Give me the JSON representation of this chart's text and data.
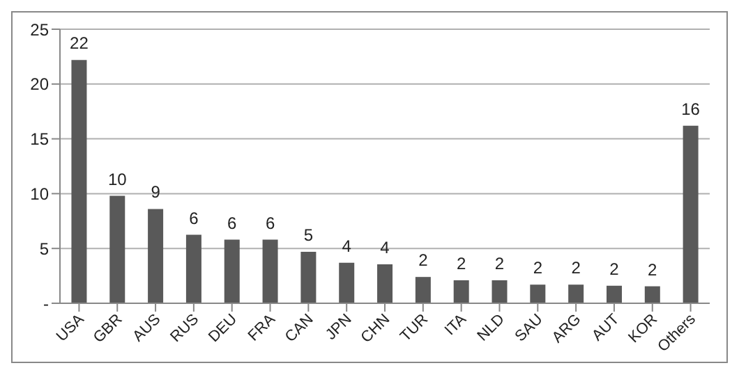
{
  "chart_data": {
    "type": "bar",
    "categories": [
      "USA",
      "GBR",
      "AUS",
      "RUS",
      "DEU",
      "FRA",
      "CAN",
      "JPN",
      "CHN",
      "TUR",
      "ITA",
      "NLD",
      "SAU",
      "ARG",
      "AUT",
      "KOR",
      "Others"
    ],
    "values": [
      22.2,
      9.8,
      8.6,
      6.25,
      5.8,
      5.8,
      4.7,
      3.7,
      3.55,
      2.4,
      2.1,
      2.1,
      1.7,
      1.7,
      1.6,
      1.55,
      16.2
    ],
    "value_labels": [
      "22",
      "10",
      "9",
      "6",
      "6",
      "6",
      "5",
      "4",
      "4",
      "2",
      "2",
      "2",
      "2",
      "2",
      "2",
      "2",
      "16"
    ],
    "color": "#595959",
    "ylim": [
      0,
      25
    ],
    "yticks": [
      {
        "value": 0,
        "label": "-"
      },
      5,
      10,
      15,
      20,
      25
    ],
    "grid": "y"
  }
}
